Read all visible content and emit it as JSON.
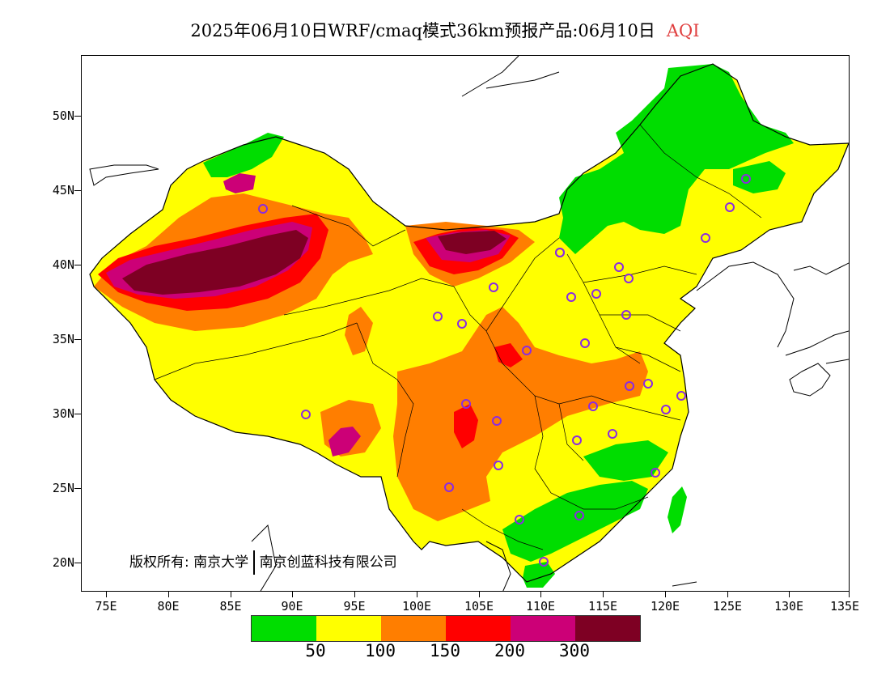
{
  "title": {
    "main": "2025年06月10日WRF/cmaq模式36km预报产品:06月10日",
    "variable": "AQI"
  },
  "axes": {
    "lat_labels": [
      "50N",
      "45N",
      "40N",
      "35N",
      "30N",
      "25N",
      "20N"
    ],
    "lon_labels": [
      "75E",
      "80E",
      "85E",
      "90E",
      "95E",
      "100E",
      "105E",
      "110E",
      "115E",
      "120E",
      "125E",
      "130E",
      "135E"
    ]
  },
  "copyright": {
    "prefix": "版权所有:",
    "org1": "南京大学",
    "org2": "南京创蓝科技有限公司"
  },
  "legend": {
    "colors": [
      "#00dd00",
      "#ffff00",
      "#ff7e00",
      "#ff0000",
      "#cc0077",
      "#7e0023"
    ],
    "labels": [
      "50",
      "100",
      "150",
      "200",
      "300"
    ]
  },
  "colors": {
    "station_marker": "#8a2be2",
    "ocean": "#ffffff",
    "boundary": "#000000"
  }
}
